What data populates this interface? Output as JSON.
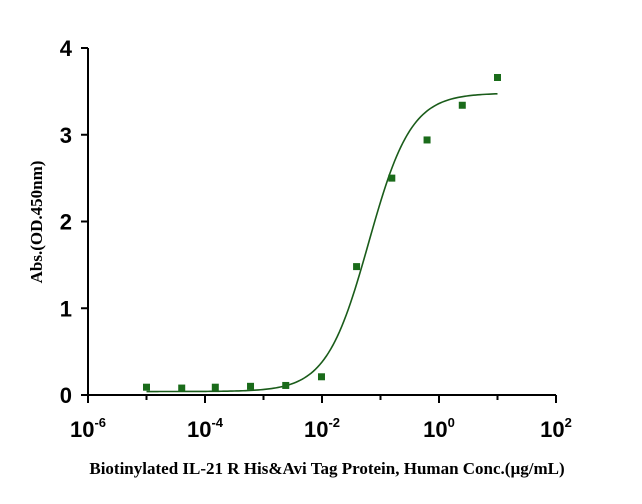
{
  "chart_data": {
    "type": "scatter",
    "title": "",
    "xlabel": "Biotinylated IL-21 R His&Avi Tag Protein, Human Conc.(µg/mL)",
    "ylabel": "Abs.(OD.450nm)",
    "x_scale": "log",
    "xlim": [
      1e-06,
      100
    ],
    "ylim": [
      0,
      4
    ],
    "x_ticks": [
      {
        "base": "10",
        "exp": "-6"
      },
      {
        "base": "10",
        "exp": "-4"
      },
      {
        "base": "10",
        "exp": "-2"
      },
      {
        "base": "10",
        "exp": "0"
      },
      {
        "base": "10",
        "exp": "2"
      }
    ],
    "y_ticks": [
      "0",
      "1",
      "2",
      "3",
      "4"
    ],
    "grid": false,
    "legend": "none",
    "colors": {
      "points": "#1a6b1a",
      "curve": "#1a5c1a",
      "axis": "#000000"
    },
    "points": [
      {
        "x": 1e-05,
        "y": 0.09
      },
      {
        "x": 4e-05,
        "y": 0.08
      },
      {
        "x": 0.00015,
        "y": 0.09
      },
      {
        "x": 0.0006,
        "y": 0.1
      },
      {
        "x": 0.0024,
        "y": 0.11
      },
      {
        "x": 0.0098,
        "y": 0.21
      },
      {
        "x": 0.039,
        "y": 1.48
      },
      {
        "x": 0.156,
        "y": 2.5
      },
      {
        "x": 0.625,
        "y": 2.94
      },
      {
        "x": 2.5,
        "y": 3.34
      },
      {
        "x": 10,
        "y": 3.66
      }
    ],
    "fit_curve": {
      "model": "4PL",
      "bottom": 0.04,
      "top": 3.48,
      "ec50": 0.063,
      "hill": 1.2,
      "x_range": [
        1e-05,
        10
      ]
    }
  }
}
